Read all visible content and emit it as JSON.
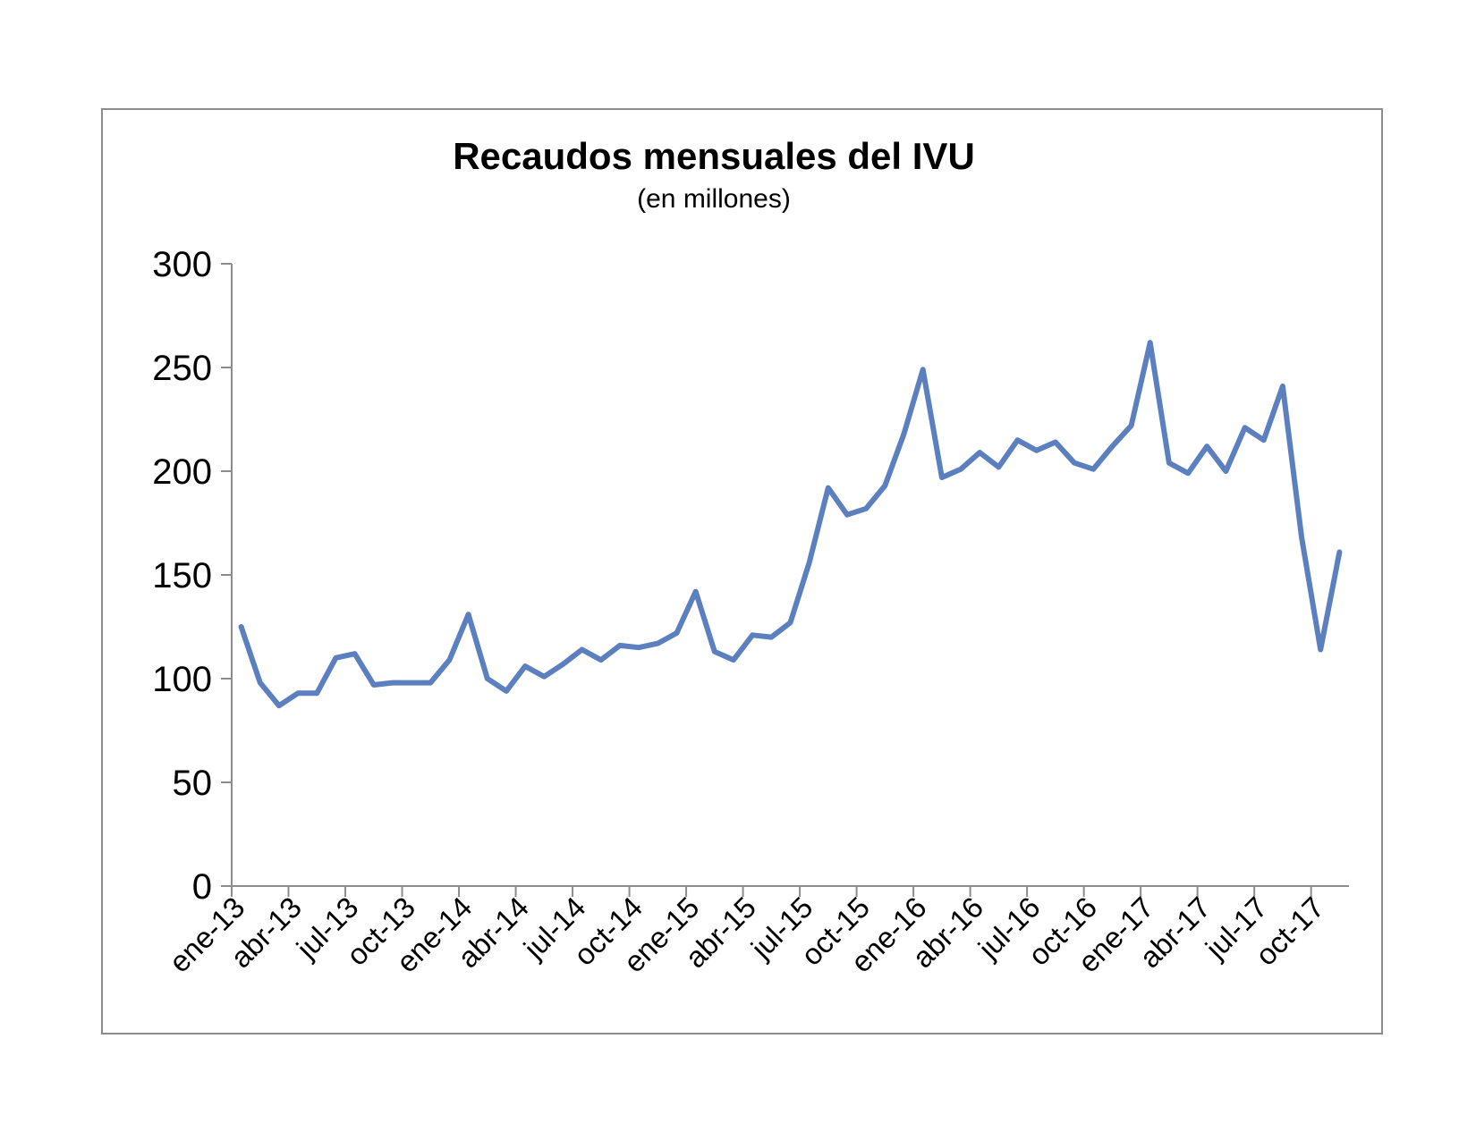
{
  "chart_data": {
    "type": "line",
    "title": "Recaudos mensuales del IVU",
    "subtitle": "(en millones)",
    "xlabel": "",
    "ylabel": "",
    "ylim": [
      0,
      300
    ],
    "y_ticks": [
      "0",
      "50",
      "100",
      "150",
      "200",
      "250",
      "300"
    ],
    "x_tick_labels": [
      "ene-13",
      "abr-13",
      "jul-13",
      "oct-13",
      "ene-14",
      "abr-14",
      "jul-14",
      "oct-14",
      "ene-15",
      "abr-15",
      "jul-15",
      "oct-15",
      "ene-16",
      "abr-16",
      "jul-16",
      "oct-16",
      "ene-17",
      "abr-17",
      "jul-17",
      "oct-17"
    ],
    "grid": false,
    "legend": "none",
    "line_color": "#5b7fbf",
    "series": [
      {
        "values": [
          125,
          98,
          87,
          93,
          93,
          110,
          112,
          97,
          98,
          98,
          98,
          109,
          131,
          100,
          94,
          106,
          101,
          107,
          114,
          109,
          116,
          115,
          117,
          122,
          142,
          113,
          109,
          121,
          120,
          127,
          156,
          192,
          179,
          182,
          193,
          218,
          249,
          197,
          201,
          209,
          202,
          215,
          210,
          214,
          204,
          201,
          212,
          222,
          262,
          204,
          199,
          212,
          200,
          221,
          215,
          241,
          168,
          114,
          161
        ]
      }
    ]
  }
}
